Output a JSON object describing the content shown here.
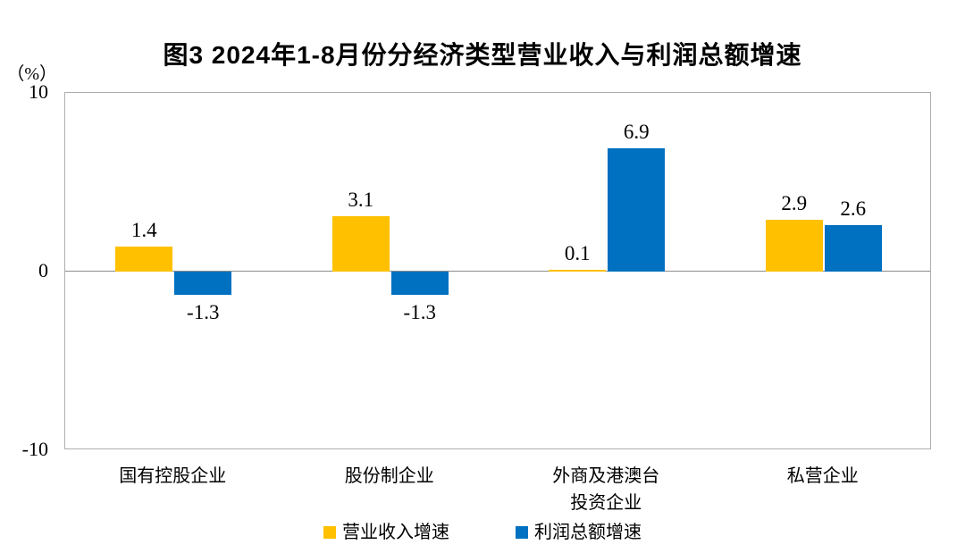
{
  "chart_data": {
    "type": "bar",
    "title": "图3 2024年1-8月份分经济类型营业收入与利润总额增速",
    "unit_label": "（%）",
    "categories": [
      "国有控股企业",
      "股份制企业",
      "外商及港澳台\n投资企业",
      "私营企业"
    ],
    "series": [
      {
        "name": "营业收入增速",
        "color": "#FFC000",
        "values": [
          1.4,
          3.1,
          0.1,
          2.9
        ]
      },
      {
        "name": "利润总额增速",
        "color": "#0070C0",
        "values": [
          -1.3,
          -1.3,
          6.9,
          2.6
        ]
      }
    ],
    "value_labels": [
      [
        "1.4",
        "3.1",
        "0.1",
        "2.9"
      ],
      [
        "-1.3",
        "-1.3",
        "6.9",
        "2.6"
      ]
    ],
    "ylim": [
      -10,
      10
    ],
    "ytick_labels": [
      "10",
      "0",
      "-10"
    ],
    "yticks": [
      10,
      0,
      -10
    ],
    "grid": "zero-line-only",
    "legend_position": "bottom"
  }
}
